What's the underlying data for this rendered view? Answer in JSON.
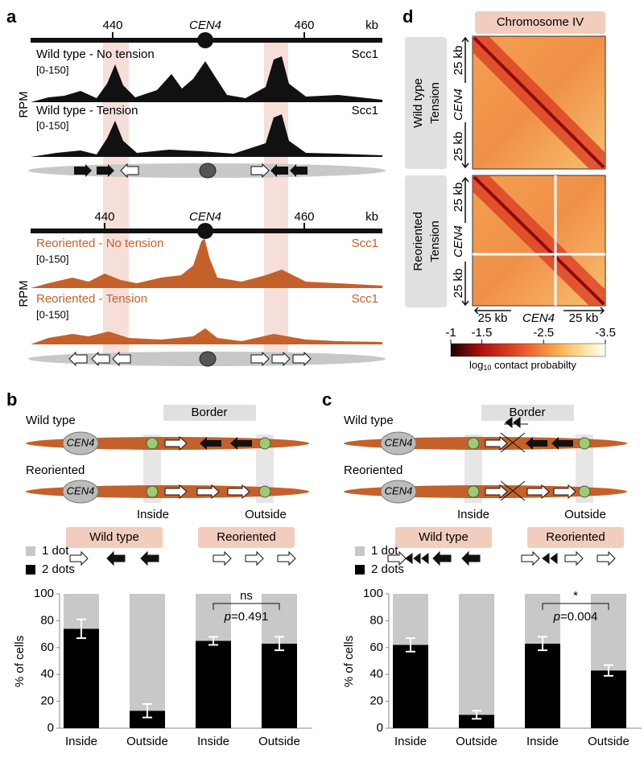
{
  "panel_a": {
    "label": "a",
    "y_label": "RPM",
    "ruler_1": {
      "ticks": [
        "440",
        "460"
      ],
      "centromere": "CEN4",
      "unit": "kb"
    },
    "ruler_2": {
      "ticks": [
        "440",
        "460"
      ],
      "centromere": "CEN4",
      "unit": "kb"
    },
    "tracks": [
      {
        "name": "Wild type - No tension",
        "range": "[0-150]",
        "protein": "Scc1"
      },
      {
        "name": "Wild type - Tension",
        "range": "[0-150]",
        "protein": "Scc1"
      },
      {
        "name": "Reoriented - No tension",
        "range": "[0-150]",
        "protein": "Scc1"
      },
      {
        "name": "Reoriented - Tension",
        "range": "[0-150]",
        "protein": "Scc1"
      }
    ]
  },
  "panel_d": {
    "label": "d",
    "title": "Chromosome IV",
    "rows": [
      [
        "Wild type",
        "Tension"
      ],
      [
        "Reoriented",
        "Tension"
      ]
    ],
    "axis": {
      "flank": "25 kb",
      "centromere": "CEN4"
    },
    "colorbar": {
      "lim": [
        -1,
        -3.5
      ],
      "ticks": [
        -1,
        -1.5,
        -2.5,
        -3.5
      ],
      "label_base": "log",
      "label_sub": "10",
      "label_rest": " contact probabilty"
    }
  },
  "panel_b": {
    "label": "b",
    "rows": [
      "Wild type",
      "Reoriented"
    ],
    "centromere": "CEN4",
    "border": "Border",
    "regions": [
      "Inside",
      "Outside"
    ]
  },
  "panel_c": {
    "label": "c",
    "rows": [
      "Wild type",
      "Reoriented"
    ],
    "centromere": "CEN4",
    "border": "Border",
    "regions": [
      "Inside",
      "Outside"
    ]
  },
  "chart_data": [
    {
      "type": "bar",
      "stacked": true,
      "groups": [
        "Wild type",
        "Reoriented"
      ],
      "categories": [
        "Inside",
        "Outside",
        "Inside",
        "Outside"
      ],
      "y_label": "% of cells",
      "ylim": [
        0,
        100
      ],
      "yticks": [
        0,
        20,
        40,
        60,
        80,
        100
      ],
      "series": [
        {
          "name": "2 dots",
          "color": "#000000",
          "values": [
            74,
            13,
            65,
            63
          ],
          "errors": [
            7,
            5,
            3,
            5
          ]
        },
        {
          "name": "1 dot",
          "color": "#c8c8c8",
          "values": [
            26,
            87,
            35,
            37
          ]
        }
      ],
      "comparison": {
        "stat": "ns",
        "p_symbol": "p",
        "p_value": "=0.491"
      }
    },
    {
      "type": "bar",
      "stacked": true,
      "groups": [
        "Wild type",
        "Reoriented"
      ],
      "categories": [
        "Inside",
        "Outside",
        "Inside",
        "Outside"
      ],
      "y_label": "% of cells",
      "ylim": [
        0,
        100
      ],
      "yticks": [
        0,
        20,
        40,
        60,
        80,
        100
      ],
      "series": [
        {
          "name": "2 dots",
          "color": "#000000",
          "values": [
            62,
            10,
            63,
            43
          ],
          "errors": [
            5,
            3,
            5,
            4
          ]
        },
        {
          "name": "1 dot",
          "color": "#c8c8c8",
          "values": [
            38,
            90,
            37,
            57
          ]
        }
      ],
      "comparison": {
        "stat": "*",
        "p_symbol": "p",
        "p_value": "=0.004"
      }
    }
  ]
}
